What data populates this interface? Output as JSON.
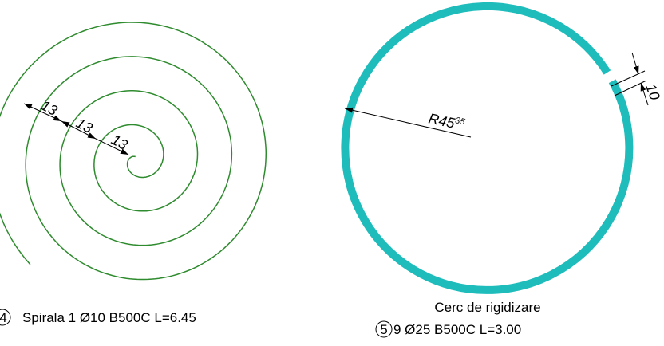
{
  "spiral": {
    "color": "#2e8b2e",
    "dimensions": [
      "13",
      "13",
      "13"
    ],
    "mark_number": "4",
    "caption": "Spirala 1 Ø10 B500C L=6.45"
  },
  "ring": {
    "color": "#1fbcbc",
    "radius_label": "R45",
    "radius_superscript": "35",
    "gap_label": "10",
    "title": "Cerc de rigidizare",
    "mark_number": "5",
    "caption": "9 Ø25 B500C L=3.00"
  }
}
